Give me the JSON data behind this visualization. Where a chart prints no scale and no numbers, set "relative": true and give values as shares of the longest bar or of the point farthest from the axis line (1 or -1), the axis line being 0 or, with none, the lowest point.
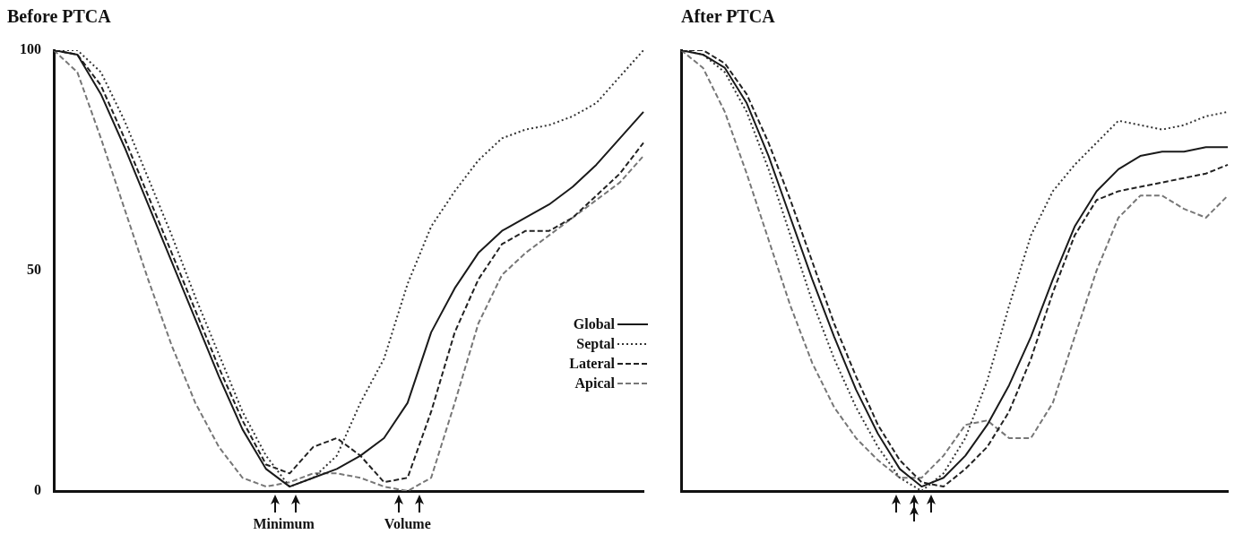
{
  "chart_data": [
    {
      "type": "line",
      "title": "Before PTCA",
      "categories": [
        null,
        null,
        null,
        null,
        null,
        null,
        null,
        null,
        null,
        null,
        null,
        null,
        null,
        null,
        null,
        null,
        null,
        null,
        null,
        null,
        null,
        null,
        null,
        null,
        null,
        null
      ],
      "ylim": [
        0,
        100
      ],
      "yticks": [
        0,
        50,
        100
      ],
      "tick_labels": "y",
      "legend": "right",
      "marker": "none",
      "annotations": [
        "Minimum",
        "Volume"
      ],
      "series": [
        {
          "name": "Global",
          "color": "#1a1a1a",
          "line_style": "solid",
          "values": [
            100,
            99,
            90,
            78,
            65,
            52,
            39,
            26,
            14,
            5,
            1,
            3,
            5,
            8,
            12,
            20,
            36,
            46,
            54,
            59,
            62,
            65,
            69,
            74,
            80,
            86
          ]
        },
        {
          "name": "Septal",
          "color": "#333333",
          "line_style": "dotted",
          "values": [
            100,
            100,
            95,
            84,
            71,
            58,
            44,
            31,
            18,
            8,
            1,
            3,
            8,
            20,
            30,
            47,
            60,
            68,
            75,
            80,
            82,
            83,
            85,
            88,
            94,
            100
          ]
        },
        {
          "name": "Lateral",
          "color": "#222222",
          "line_style": "dashed",
          "values": [
            100,
            99,
            92,
            80,
            67,
            54,
            41,
            28,
            16,
            6,
            4,
            10,
            12,
            8,
            2,
            3,
            18,
            36,
            48,
            56,
            59,
            59,
            62,
            67,
            72,
            79
          ]
        },
        {
          "name": "Apical",
          "color": "#777777",
          "line_style": "dashed",
          "values": [
            100,
            95,
            80,
            64,
            48,
            33,
            20,
            10,
            3,
            1,
            2,
            4,
            4,
            3,
            1,
            0,
            3,
            20,
            38,
            49,
            54,
            58,
            62,
            66,
            70,
            76
          ]
        }
      ]
    },
    {
      "type": "line",
      "title": "After PTCA",
      "categories": [
        null,
        null,
        null,
        null,
        null,
        null,
        null,
        null,
        null,
        null,
        null,
        null,
        null,
        null,
        null,
        null,
        null,
        null,
        null,
        null,
        null,
        null,
        null,
        null,
        null,
        null
      ],
      "relative": true,
      "tick_labels": false,
      "marker": "none",
      "series": [
        {
          "color": "#1a1a1a",
          "line_style": "solid",
          "values": [
            1,
            0.99,
            0.96,
            0.88,
            0.76,
            0.62,
            0.48,
            0.35,
            0.23,
            0.13,
            0.05,
            0.01,
            0.03,
            0.08,
            0.15,
            0.24,
            0.35,
            0.48,
            0.6,
            0.68,
            0.73,
            0.76,
            0.77,
            0.77,
            0.78,
            0.78
          ]
        },
        {
          "color": "#333333",
          "line_style": "dotted",
          "values": [
            1,
            0.99,
            0.95,
            0.86,
            0.73,
            0.58,
            0.43,
            0.3,
            0.19,
            0.1,
            0.03,
            0,
            0.04,
            0.12,
            0.25,
            0.42,
            0.58,
            0.68,
            0.74,
            0.79,
            0.84,
            0.83,
            0.82,
            0.83,
            0.85,
            0.86
          ]
        },
        {
          "color": "#222222",
          "line_style": "dashed",
          "values": [
            1,
            1,
            0.97,
            0.9,
            0.79,
            0.66,
            0.52,
            0.38,
            0.26,
            0.15,
            0.07,
            0.02,
            0.01,
            0.05,
            0.1,
            0.18,
            0.3,
            0.45,
            0.58,
            0.66,
            0.68,
            0.69,
            0.7,
            0.71,
            0.72,
            0.74
          ]
        },
        {
          "color": "#777777",
          "line_style": "dashed",
          "values": [
            1,
            0.96,
            0.86,
            0.72,
            0.57,
            0.42,
            0.29,
            0.19,
            0.12,
            0.07,
            0.03,
            0.03,
            0.08,
            0.15,
            0.16,
            0.12,
            0.12,
            0.2,
            0.35,
            0.5,
            0.62,
            0.67,
            0.67,
            0.64,
            0.62,
            0.67
          ]
        }
      ]
    }
  ]
}
